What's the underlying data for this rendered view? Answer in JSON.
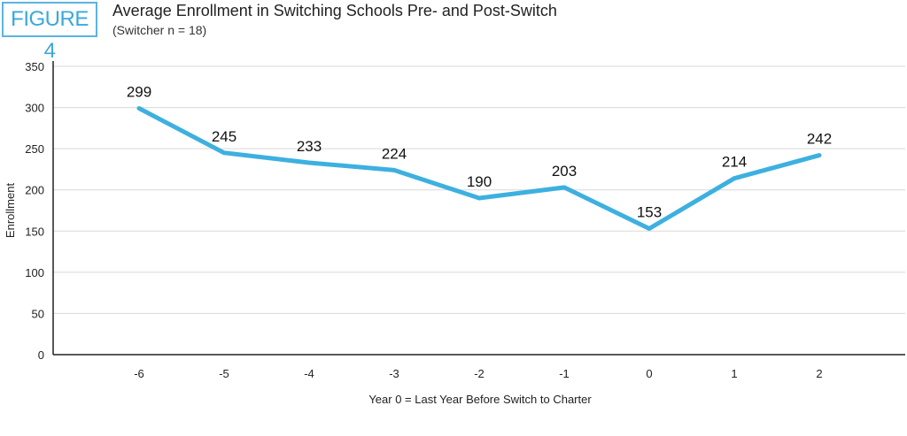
{
  "figure_label": "FIGURE 4",
  "chart_data": {
    "type": "line",
    "title": "Average Enrollment in Switching Schools Pre- and Post-Switch",
    "subtitle": "(Switcher n = 18)",
    "xlabel": "Year 0 = Last Year Before Switch to Charter",
    "ylabel": "Enrollment",
    "x": [
      -6,
      -5,
      -4,
      -3,
      -2,
      -1,
      0,
      1,
      2
    ],
    "x_tick_labels": [
      "-6",
      "-5",
      "-4",
      "-3",
      "-2",
      "-1",
      "0",
      "1",
      "2"
    ],
    "values": [
      299,
      245,
      233,
      224,
      190,
      203,
      153,
      214,
      242
    ],
    "data_labels": [
      "299",
      "245",
      "233",
      "224",
      "190",
      "203",
      "153",
      "214",
      "242"
    ],
    "ylim": [
      0,
      350
    ],
    "y_ticks": [
      0,
      50,
      100,
      150,
      200,
      250,
      300,
      350
    ],
    "y_tick_labels": [
      "0",
      "50",
      "100",
      "150",
      "200",
      "250",
      "300",
      "350"
    ],
    "grid": true,
    "legend": "none",
    "line_color": "#3db0e0"
  }
}
